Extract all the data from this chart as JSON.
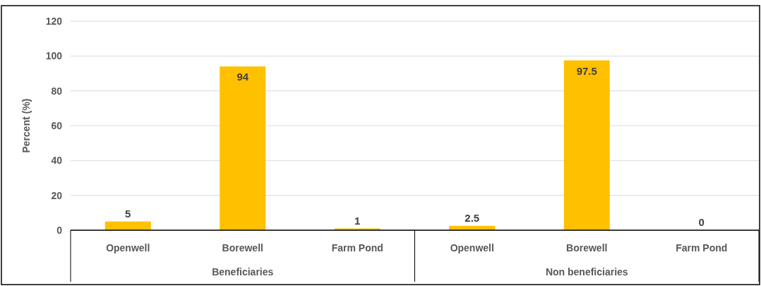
{
  "chart_data": {
    "type": "bar",
    "ylabel": "Percent (%)",
    "categories": [
      "Openwell",
      "Borewell",
      "Farm Pond",
      "Openwell",
      "Borewell",
      "Farm Pond"
    ],
    "values": [
      5,
      94,
      1,
      2.5,
      97.5,
      0
    ],
    "color": "#ffc000",
    "ylim": [
      0,
      120
    ],
    "yticks": [
      0,
      20,
      40,
      60,
      80,
      100,
      120
    ],
    "grid": "y",
    "data_labels": true,
    "annotations": [
      "Beneficiaries",
      "Non beneficiaries"
    ]
  }
}
